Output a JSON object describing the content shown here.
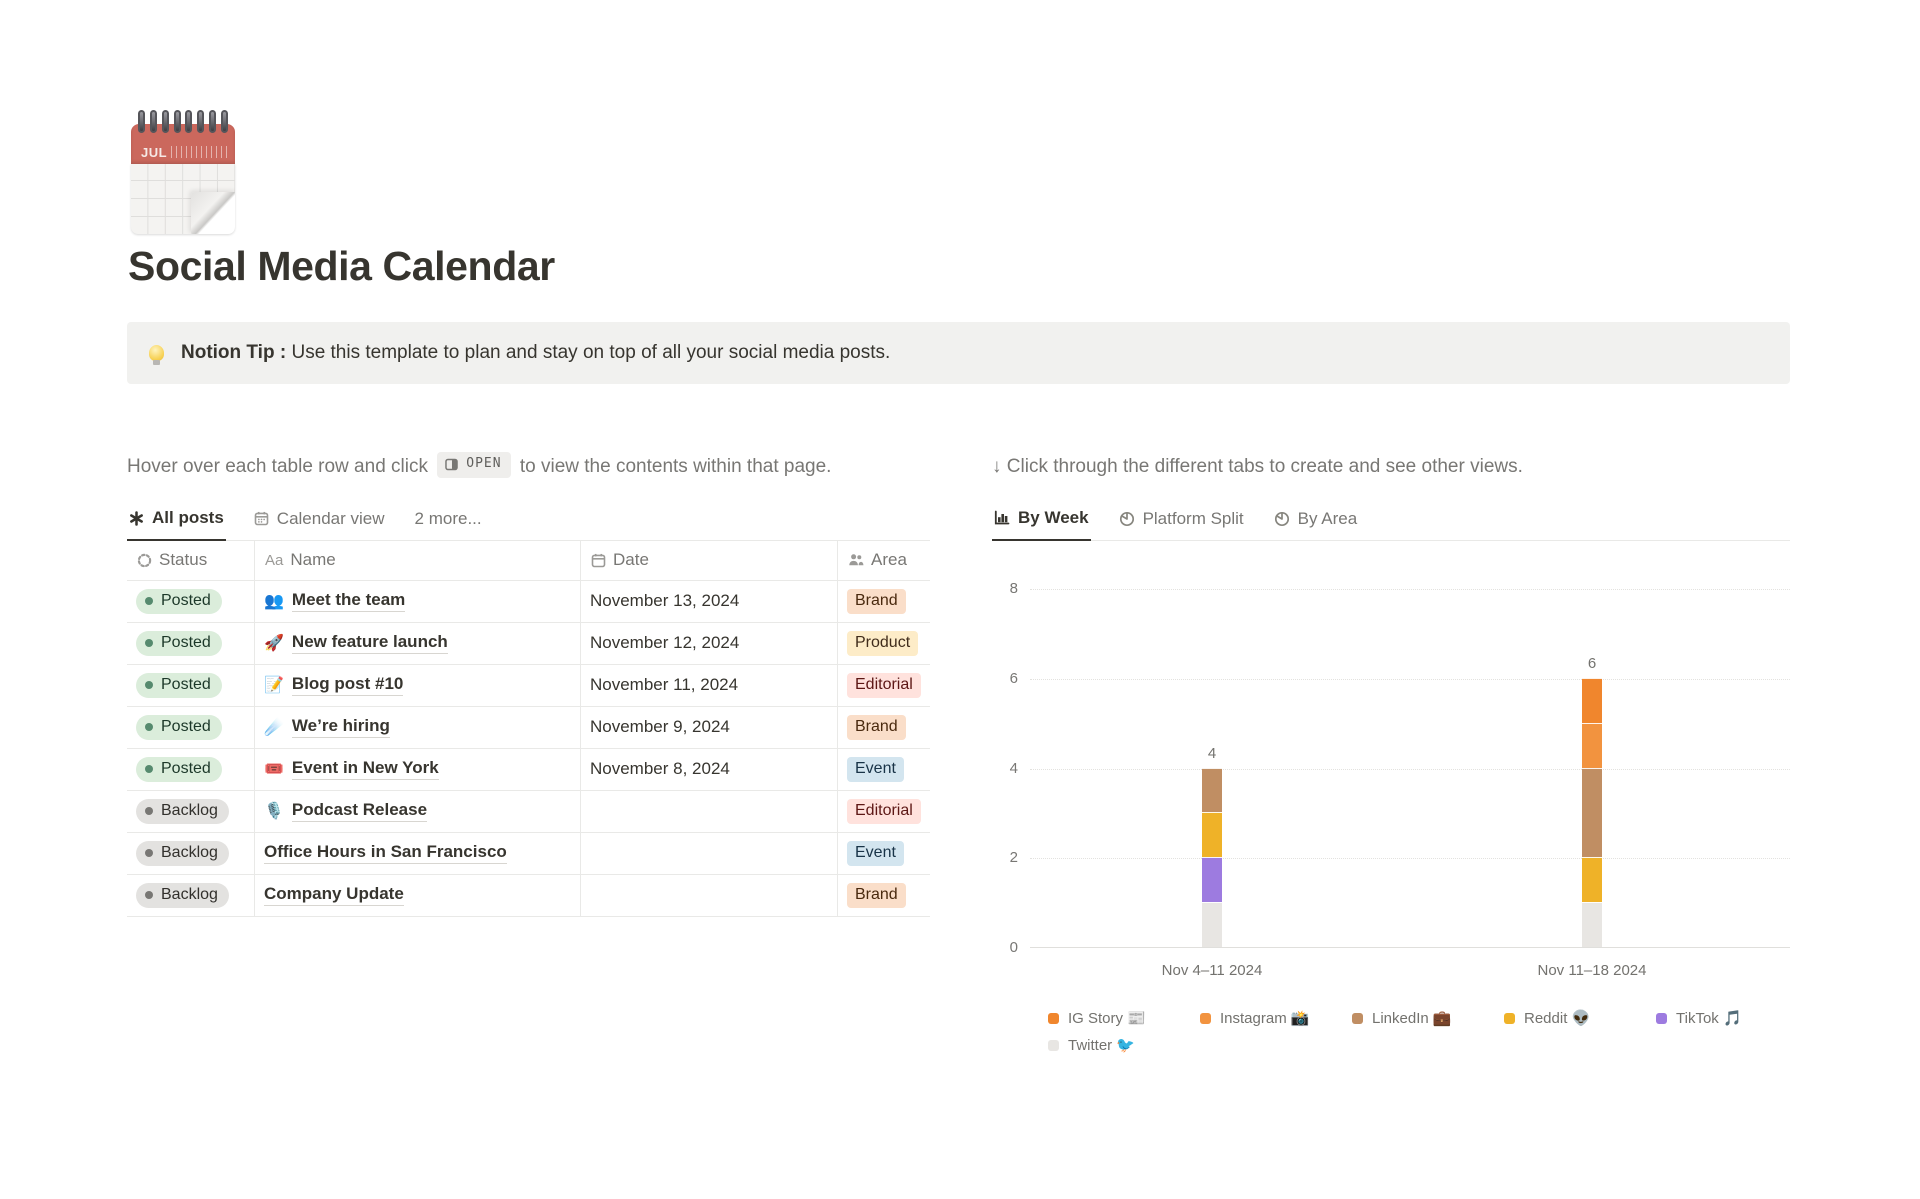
{
  "page": {
    "icon": "spiral-calendar",
    "icon_month": "JUL",
    "title": "Social Media Calendar",
    "callout": {
      "icon": "light-bulb",
      "bold": "Notion Tip :",
      "text": " Use this template to plan and stay on top of all your social media posts."
    }
  },
  "left": {
    "instruction_before": "Hover over each table row and click",
    "open_badge": "OPEN",
    "instruction_after": "to view the contents within that page.",
    "tabs": [
      {
        "label": "All posts",
        "icon": "asterisk-view-icon",
        "active": true
      },
      {
        "label": "Calendar view",
        "icon": "calendar-icon",
        "active": false
      },
      {
        "label": "2 more...",
        "icon": "none",
        "active": false
      }
    ],
    "table": {
      "columns": [
        {
          "label": "Status",
          "icon": "status-icon"
        },
        {
          "label": "Name",
          "icon_text": "Aa"
        },
        {
          "label": "Date",
          "icon": "calendar-icon"
        },
        {
          "label": "Area",
          "icon": "people-icon"
        }
      ],
      "rows": [
        {
          "status": "Posted",
          "emoji": "👥",
          "name": "Meet the team",
          "date": "November 13, 2024",
          "area": "Brand"
        },
        {
          "status": "Posted",
          "emoji": "🚀",
          "name": "New feature launch",
          "date": "November 12, 2024",
          "area": "Product"
        },
        {
          "status": "Posted",
          "emoji": "📝",
          "name": "Blog post #10",
          "date": "November 11, 2024",
          "area": "Editorial"
        },
        {
          "status": "Posted",
          "emoji": "☄️",
          "name": "We’re hiring",
          "date": "November 9, 2024",
          "area": "Brand"
        },
        {
          "status": "Posted",
          "emoji": "🎟️",
          "name": "Event in New York",
          "date": "November 8, 2024",
          "area": "Event"
        },
        {
          "status": "Backlog",
          "emoji": "🎙️",
          "name": "Podcast Release",
          "date": "",
          "area": "Editorial"
        },
        {
          "status": "Backlog",
          "emoji": "",
          "name": "Office Hours in San Francisco",
          "date": "",
          "area": "Event"
        },
        {
          "status": "Backlog",
          "emoji": "",
          "name": "Company Update",
          "date": "",
          "area": "Brand"
        }
      ],
      "status_styles": {
        "Posted": {
          "bg": "#DBEDDB",
          "dot": "#568A6E",
          "text": "#1C3829"
        },
        "Backlog": {
          "bg": "#E3E2E0",
          "dot": "#787774",
          "text": "#32302C"
        }
      },
      "area_styles": {
        "Brand": {
          "bg": "#FADEC9",
          "text": "#49290E"
        },
        "Product": {
          "bg": "#FDECC8",
          "text": "#402C1B"
        },
        "Editorial": {
          "bg": "#FFE2DD",
          "text": "#5D1715"
        },
        "Event": {
          "bg": "#D3E5EF",
          "text": "#183347"
        }
      }
    }
  },
  "right": {
    "instruction": "↓ Click through the different tabs to create and see other views.",
    "tabs": [
      {
        "label": "By Week",
        "icon": "bar-chart-icon",
        "active": true
      },
      {
        "label": "Platform Split",
        "icon": "pie-chart-icon",
        "active": false
      },
      {
        "label": "By Area",
        "icon": "pie-chart-icon",
        "active": false
      }
    ]
  },
  "chart_data": {
    "type": "bar",
    "subtype": "stacked",
    "title": "",
    "categories": [
      "Nov 4–11 2024",
      "Nov 11–18 2024"
    ],
    "series": [
      {
        "name": "IG Story 📰",
        "color": "#F0862D",
        "values": [
          0,
          1
        ]
      },
      {
        "name": "Instagram 📸",
        "color": "#F2933F",
        "values": [
          0,
          1
        ]
      },
      {
        "name": "LinkedIn 💼",
        "color": "#C08E63",
        "values": [
          1,
          2
        ]
      },
      {
        "name": "Reddit 👽",
        "color": "#EFB228",
        "values": [
          1,
          1
        ]
      },
      {
        "name": "TikTok 🎵",
        "color": "#9D7BE0",
        "values": [
          1,
          0
        ]
      },
      {
        "name": "Twitter 🐦",
        "color": "#E8E6E3",
        "values": [
          1,
          1
        ]
      }
    ],
    "totals": [
      4,
      6
    ],
    "y_ticks": [
      0,
      2,
      4,
      6,
      8
    ],
    "ylim": [
      0,
      8
    ],
    "grid": "horizontal-dotted",
    "legend_position": "bottom"
  }
}
